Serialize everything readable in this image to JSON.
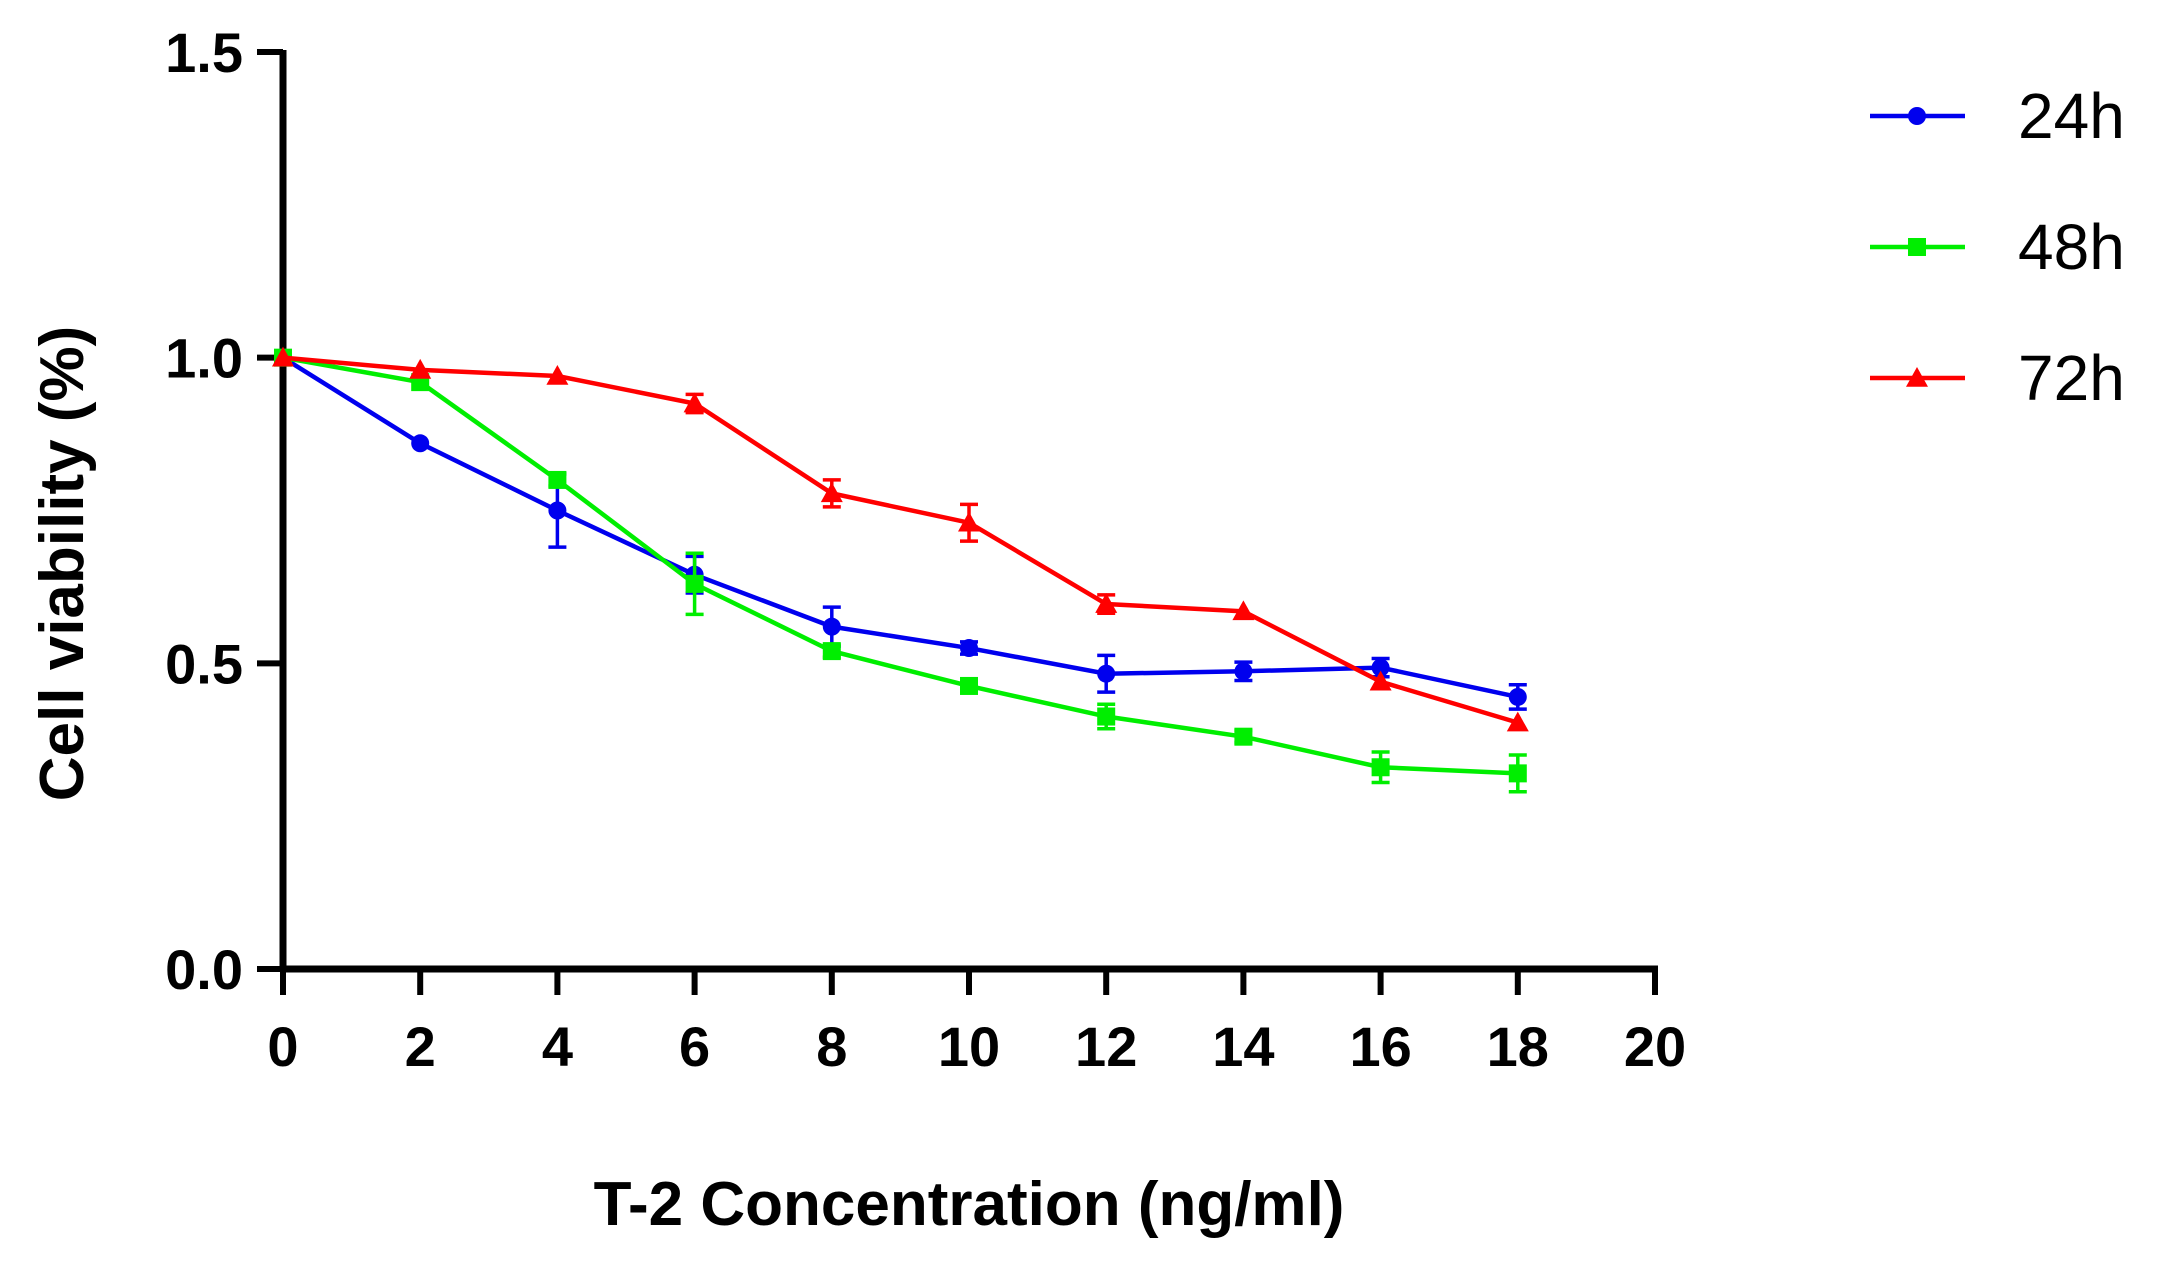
{
  "chart_data": {
    "type": "line",
    "title": "",
    "xlabel": "T-2 Concentration (ng/ml)",
    "ylabel": "Cell viability (%)",
    "xlim": [
      0,
      20
    ],
    "ylim": [
      0,
      1.5
    ],
    "x_ticks": [
      0,
      2,
      4,
      6,
      8,
      10,
      12,
      14,
      16,
      18,
      20
    ],
    "y_ticks": [
      0.0,
      0.5,
      1.0,
      1.5
    ],
    "y_tick_labels": [
      "0.0",
      "0.5",
      "1.0",
      "1.5"
    ],
    "grid": false,
    "legend_position": "top-right",
    "x": [
      0,
      2,
      4,
      6,
      8,
      10,
      12,
      14,
      16,
      18
    ],
    "series": [
      {
        "name": "24h",
        "color": "#0000ee",
        "marker": "circle",
        "values": [
          1.0,
          0.86,
          0.75,
          0.645,
          0.56,
          0.525,
          0.483,
          0.487,
          0.493,
          0.445
        ],
        "errors": [
          0.0,
          0.0,
          0.06,
          0.03,
          0.032,
          0.01,
          0.03,
          0.015,
          0.015,
          0.02
        ]
      },
      {
        "name": "48h",
        "color": "#00ee00",
        "marker": "square",
        "values": [
          1.0,
          0.96,
          0.8,
          0.63,
          0.52,
          0.463,
          0.413,
          0.38,
          0.33,
          0.32
        ],
        "errors": [
          0.0,
          0.0,
          0.01,
          0.05,
          0.01,
          0.01,
          0.02,
          0.01,
          0.025,
          0.03
        ]
      },
      {
        "name": "72h",
        "color": "#ff0000",
        "marker": "triangle",
        "values": [
          1.0,
          0.98,
          0.97,
          0.925,
          0.778,
          0.73,
          0.597,
          0.585,
          0.47,
          0.403
        ],
        "errors": [
          0.0,
          0.0,
          0.0,
          0.015,
          0.022,
          0.03,
          0.015,
          0.0,
          0.0,
          0.0
        ]
      }
    ]
  }
}
